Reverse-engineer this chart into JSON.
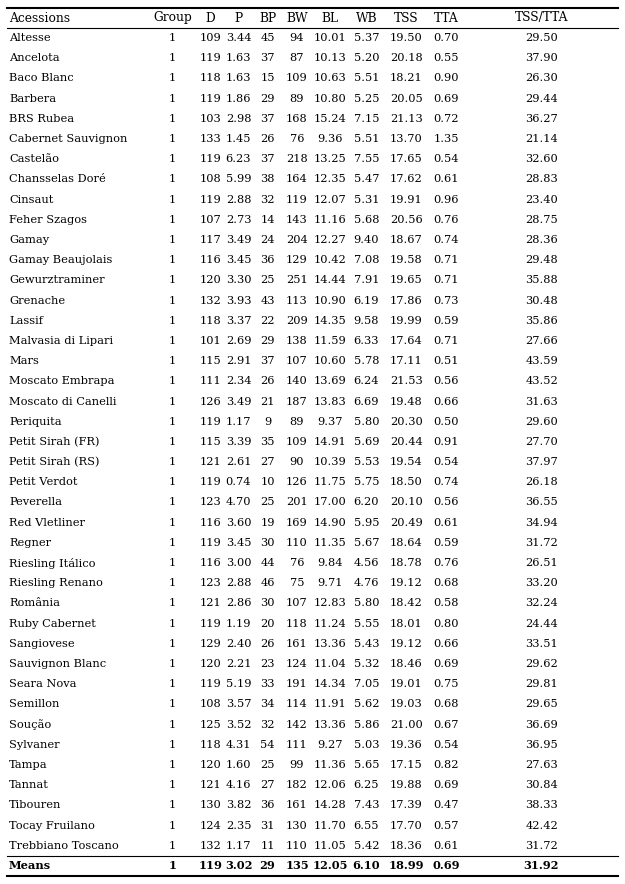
{
  "columns": [
    "Acessions",
    "Group",
    "D",
    "P",
    "BP",
    "BW",
    "BL",
    "WB",
    "TSS",
    "TTA",
    "TSS/TTA"
  ],
  "rows": [
    [
      "Altesse",
      "1",
      "109",
      "3.44",
      "45",
      "94",
      "10.01",
      "5.37",
      "19.50",
      "0.70",
      "29.50"
    ],
    [
      "Ancelota",
      "1",
      "119",
      "1.63",
      "37",
      "87",
      "10.13",
      "5.20",
      "20.18",
      "0.55",
      "37.90"
    ],
    [
      "Baco Blanc",
      "1",
      "118",
      "1.63",
      "15",
      "109",
      "10.63",
      "5.51",
      "18.21",
      "0.90",
      "26.30"
    ],
    [
      "Barbera",
      "1",
      "119",
      "1.86",
      "29",
      "89",
      "10.80",
      "5.25",
      "20.05",
      "0.69",
      "29.44"
    ],
    [
      "BRS Rubea",
      "1",
      "103",
      "2.98",
      "37",
      "168",
      "15.24",
      "7.15",
      "21.13",
      "0.72",
      "36.27"
    ],
    [
      "Cabernet Sauvignon",
      "1",
      "133",
      "1.45",
      "26",
      "76",
      "9.36",
      "5.51",
      "13.70",
      "1.35",
      "21.14"
    ],
    [
      "Castelão",
      "1",
      "119",
      "6.23",
      "37",
      "218",
      "13.25",
      "7.55",
      "17.65",
      "0.54",
      "32.60"
    ],
    [
      "Chansselas Doré",
      "1",
      "108",
      "5.99",
      "38",
      "164",
      "12.35",
      "5.47",
      "17.62",
      "0.61",
      "28.83"
    ],
    [
      "Cinsaut",
      "1",
      "119",
      "2.88",
      "32",
      "119",
      "12.07",
      "5.31",
      "19.91",
      "0.96",
      "23.40"
    ],
    [
      "Feher Szagos",
      "1",
      "107",
      "2.73",
      "14",
      "143",
      "11.16",
      "5.68",
      "20.56",
      "0.76",
      "28.75"
    ],
    [
      "Gamay",
      "1",
      "117",
      "3.49",
      "24",
      "204",
      "12.27",
      "9.40",
      "18.67",
      "0.74",
      "28.36"
    ],
    [
      "Gamay Beaujolais",
      "1",
      "116",
      "3.45",
      "36",
      "129",
      "10.42",
      "7.08",
      "19.58",
      "0.71",
      "29.48"
    ],
    [
      "Gewurztraminer",
      "1",
      "120",
      "3.30",
      "25",
      "251",
      "14.44",
      "7.91",
      "19.65",
      "0.71",
      "35.88"
    ],
    [
      "Grenache",
      "1",
      "132",
      "3.93",
      "43",
      "113",
      "10.90",
      "6.19",
      "17.86",
      "0.73",
      "30.48"
    ],
    [
      "Lassif",
      "1",
      "118",
      "3.37",
      "22",
      "209",
      "14.35",
      "9.58",
      "19.99",
      "0.59",
      "35.86"
    ],
    [
      "Malvasia di Lipari",
      "1",
      "101",
      "2.69",
      "29",
      "138",
      "11.59",
      "6.33",
      "17.64",
      "0.71",
      "27.66"
    ],
    [
      "Mars",
      "1",
      "115",
      "2.91",
      "37",
      "107",
      "10.60",
      "5.78",
      "17.11",
      "0.51",
      "43.59"
    ],
    [
      "Moscato Embrapa",
      "1",
      "111",
      "2.34",
      "26",
      "140",
      "13.69",
      "6.24",
      "21.53",
      "0.56",
      "43.52"
    ],
    [
      "Moscato di Canelli",
      "1",
      "126",
      "3.49",
      "21",
      "187",
      "13.83",
      "6.69",
      "19.48",
      "0.66",
      "31.63"
    ],
    [
      "Periquita",
      "1",
      "119",
      "1.17",
      "9",
      "89",
      "9.37",
      "5.80",
      "20.30",
      "0.50",
      "29.60"
    ],
    [
      "Petit Sirah (FR)",
      "1",
      "115",
      "3.39",
      "35",
      "109",
      "14.91",
      "5.69",
      "20.44",
      "0.91",
      "27.70"
    ],
    [
      "Petit Sirah (RS)",
      "1",
      "121",
      "2.61",
      "27",
      "90",
      "10.39",
      "5.53",
      "19.54",
      "0.54",
      "37.97"
    ],
    [
      "Petit Verdot",
      "1",
      "119",
      "0.74",
      "10",
      "126",
      "11.75",
      "5.75",
      "18.50",
      "0.74",
      "26.18"
    ],
    [
      "Peverella",
      "1",
      "123",
      "4.70",
      "25",
      "201",
      "17.00",
      "6.20",
      "20.10",
      "0.56",
      "36.55"
    ],
    [
      "Red Vletliner",
      "1",
      "116",
      "3.60",
      "19",
      "169",
      "14.90",
      "5.95",
      "20.49",
      "0.61",
      "34.94"
    ],
    [
      "Regner",
      "1",
      "119",
      "3.45",
      "30",
      "110",
      "11.35",
      "5.67",
      "18.64",
      "0.59",
      "31.72"
    ],
    [
      "Riesling Itálico",
      "1",
      "116",
      "3.00",
      "44",
      "76",
      "9.84",
      "4.56",
      "18.78",
      "0.76",
      "26.51"
    ],
    [
      "Riesling Renano",
      "1",
      "123",
      "2.88",
      "46",
      "75",
      "9.71",
      "4.76",
      "19.12",
      "0.68",
      "33.20"
    ],
    [
      "România",
      "1",
      "121",
      "2.86",
      "30",
      "107",
      "12.83",
      "5.80",
      "18.42",
      "0.58",
      "32.24"
    ],
    [
      "Ruby Cabernet",
      "1",
      "119",
      "1.19",
      "20",
      "118",
      "11.24",
      "5.55",
      "18.01",
      "0.80",
      "24.44"
    ],
    [
      "Sangiovese",
      "1",
      "129",
      "2.40",
      "26",
      "161",
      "13.36",
      "5.43",
      "19.12",
      "0.66",
      "33.51"
    ],
    [
      "Sauvignon Blanc",
      "1",
      "120",
      "2.21",
      "23",
      "124",
      "11.04",
      "5.32",
      "18.46",
      "0.69",
      "29.62"
    ],
    [
      "Seara Nova",
      "1",
      "119",
      "5.19",
      "33",
      "191",
      "14.34",
      "7.05",
      "19.01",
      "0.75",
      "29.81"
    ],
    [
      "Semillon",
      "1",
      "108",
      "3.57",
      "34",
      "114",
      "11.91",
      "5.62",
      "19.03",
      "0.68",
      "29.65"
    ],
    [
      "Soução",
      "1",
      "125",
      "3.52",
      "32",
      "142",
      "13.36",
      "5.86",
      "21.00",
      "0.67",
      "36.69"
    ],
    [
      "Sylvaner",
      "1",
      "118",
      "4.31",
      "54",
      "111",
      "9.27",
      "5.03",
      "19.36",
      "0.54",
      "36.95"
    ],
    [
      "Tampa",
      "1",
      "120",
      "1.60",
      "25",
      "99",
      "11.36",
      "5.65",
      "17.15",
      "0.82",
      "27.63"
    ],
    [
      "Tannat",
      "1",
      "121",
      "4.16",
      "27",
      "182",
      "12.06",
      "6.25",
      "19.88",
      "0.69",
      "30.84"
    ],
    [
      "Tibouren",
      "1",
      "130",
      "3.82",
      "36",
      "161",
      "14.28",
      "7.43",
      "17.39",
      "0.47",
      "38.33"
    ],
    [
      "Tocay Fruilano",
      "1",
      "124",
      "2.35",
      "31",
      "130",
      "11.70",
      "6.55",
      "17.70",
      "0.57",
      "42.42"
    ],
    [
      "Trebbiano Toscano",
      "1",
      "132",
      "1.17",
      "11",
      "110",
      "11.05",
      "5.42",
      "18.36",
      "0.61",
      "31.72"
    ]
  ],
  "means_row": [
    "Means",
    "1",
    "119",
    "3.02",
    "29",
    "135",
    "12.05",
    "6.10",
    "18.99",
    "0.69",
    "31.92"
  ],
  "text_color": "#000000",
  "line_color": "#000000",
  "font_size": 8.2,
  "header_font_size": 8.8,
  "fig_width": 6.25,
  "fig_height": 8.84,
  "dpi": 100
}
